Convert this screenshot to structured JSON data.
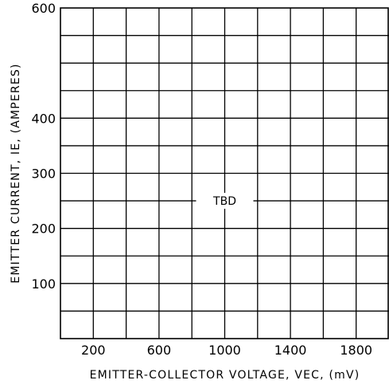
{
  "chart_data": {
    "type": "line",
    "title": "",
    "xlabel": "EMITTER-COLLECTOR VOLTAGE, VEC, (mV)",
    "ylabel": "EMITTER CURRENT, IE, (AMPERES)",
    "xlim": [
      0,
      2000
    ],
    "ylim": [
      0,
      600
    ],
    "x_tick_labels": [
      "200",
      "600",
      "1000",
      "1400",
      "1800"
    ],
    "x_tick_values": [
      200,
      600,
      1000,
      1400,
      1800
    ],
    "x_grid_values": [
      200,
      400,
      600,
      800,
      1000,
      1200,
      1400,
      1600,
      1800
    ],
    "y_tick_labels": [
      "100",
      "200",
      "300",
      "400",
      "600"
    ],
    "y_tick_values": [
      100,
      200,
      300,
      400,
      600
    ],
    "y_grid_values": [
      50,
      100,
      150,
      200,
      250,
      300,
      350,
      400,
      450,
      500,
      550
    ],
    "grid": true,
    "annotation": {
      "text": "TBD",
      "x": 1000,
      "y": 250
    },
    "series": []
  }
}
